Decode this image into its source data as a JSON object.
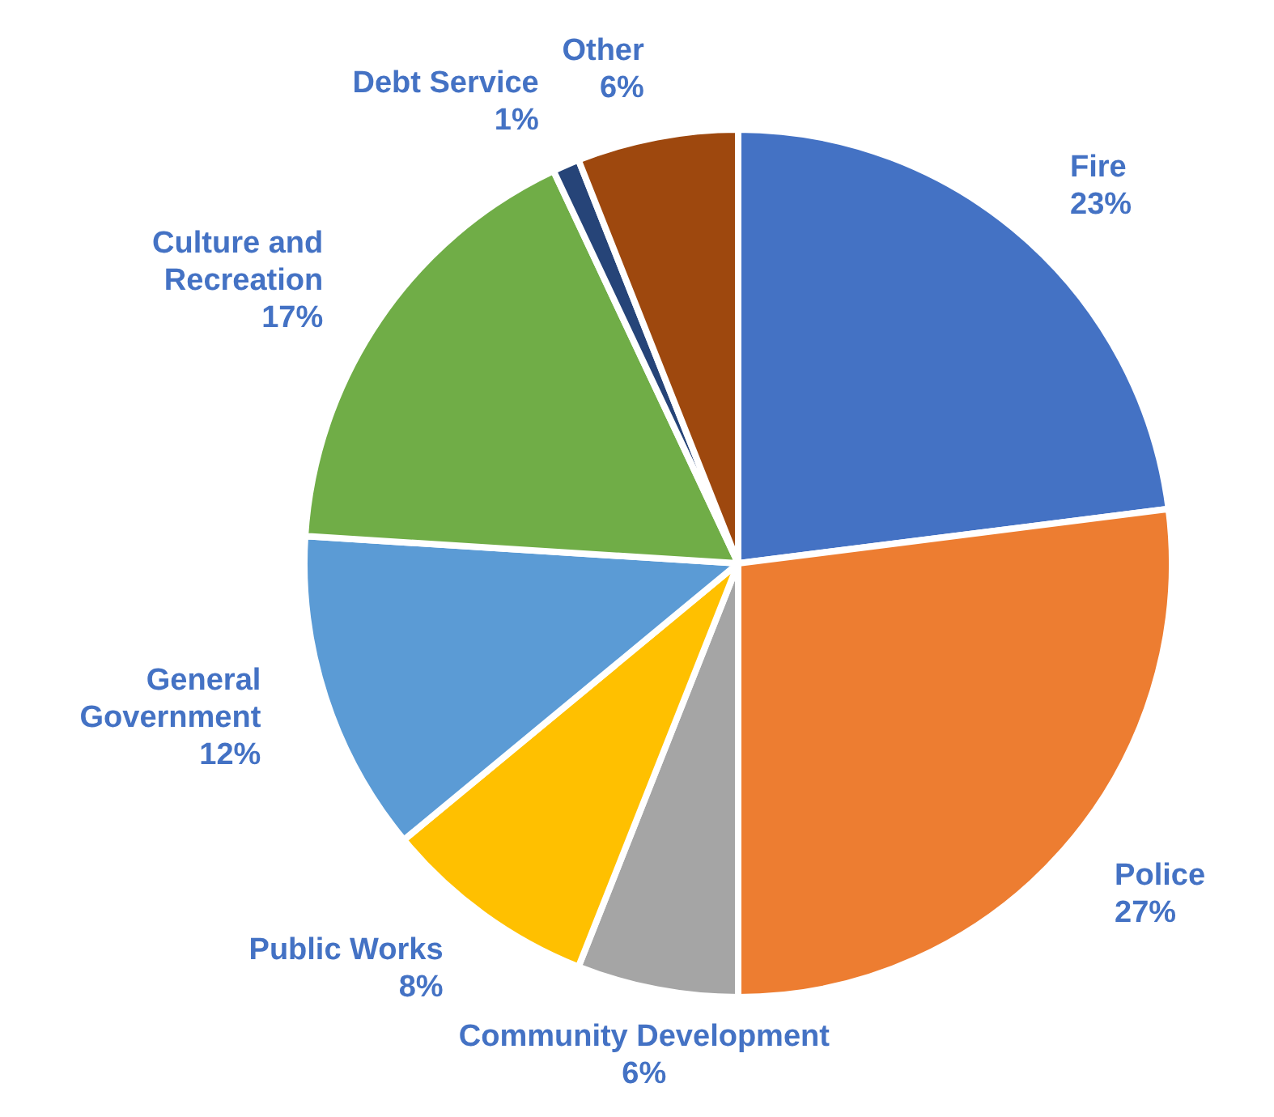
{
  "chart_data": {
    "type": "pie",
    "categories": [
      "Fire",
      "Police",
      "Community Development",
      "Public Works",
      "General Government",
      "Culture and Recreation",
      "Debt Service",
      "Other"
    ],
    "values": [
      23,
      27,
      6,
      8,
      12,
      17,
      1,
      6
    ],
    "value_labels": [
      "23%",
      "27%",
      "6%",
      "8%",
      "12%",
      "17%",
      "1%",
      "6%"
    ],
    "colors": [
      "#4472c4",
      "#ed7d31",
      "#a5a5a5",
      "#ffc000",
      "#5b9bd5",
      "#70ad47",
      "#264478",
      "#9e480e"
    ],
    "legend": false
  }
}
